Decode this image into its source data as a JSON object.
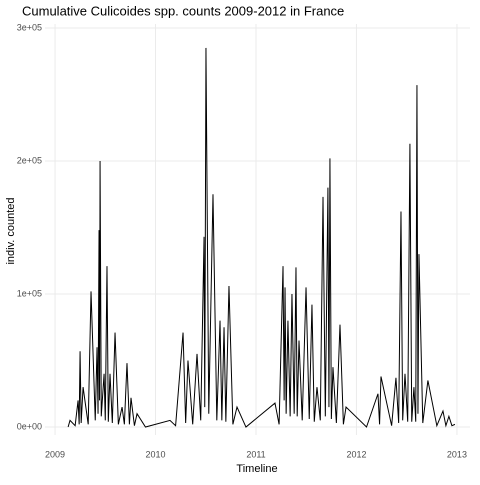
{
  "chart_data": {
    "type": "line",
    "title": "Cumulative Culicoides spp. counts 2009-2012 in France",
    "xlabel": "Timeline",
    "ylabel": "indiv. counted",
    "color": "#000000",
    "grid": true,
    "x": [
      2009.13,
      2009.149,
      2009.2,
      2009.229,
      2009.24,
      2009.249,
      2009.26,
      2009.279,
      2009.33,
      2009.358,
      2009.4,
      2009.418,
      2009.428,
      2009.438,
      2009.443,
      2009.448,
      2009.46,
      2009.488,
      2009.5,
      2009.517,
      2009.53,
      2009.547,
      2009.57,
      2009.597,
      2009.63,
      2009.667,
      2009.69,
      2009.716,
      2009.74,
      2009.756,
      2009.79,
      2009.816,
      2009.9,
      2010.144,
      2010.2,
      2010.274,
      2010.3,
      2010.323,
      2010.37,
      2010.413,
      2010.45,
      2010.483,
      2010.49,
      2010.502,
      2010.53,
      2010.572,
      2010.61,
      2010.642,
      2010.66,
      2010.682,
      2010.7,
      2010.731,
      2010.77,
      2010.811,
      2010.9,
      2011.189,
      2011.23,
      2011.269,
      2011.28,
      2011.289,
      2011.3,
      2011.318,
      2011.34,
      2011.358,
      2011.38,
      2011.398,
      2011.41,
      2011.428,
      2011.46,
      2011.498,
      2011.53,
      2011.557,
      2011.58,
      2011.607,
      2011.64,
      2011.667,
      2011.69,
      2011.716,
      2011.726,
      2011.736,
      2011.75,
      2011.766,
      2011.8,
      2011.836,
      2011.87,
      2011.896,
      2012.1,
      2012.214,
      2012.23,
      2012.244,
      2012.35,
      2012.393,
      2012.42,
      2012.443,
      2012.46,
      2012.483,
      2012.51,
      2012.532,
      2012.55,
      2012.572,
      2012.59,
      2012.602,
      2012.612,
      2012.622,
      2012.66,
      2012.711,
      2012.8,
      2012.861,
      2012.89,
      2012.92,
      2012.95,
      2012.98
    ],
    "values": [
      0,
      5000,
      1000,
      20000,
      2000,
      57000,
      3000,
      30000,
      2000,
      102000,
      5000,
      60000,
      10000,
      148000,
      20000,
      200000,
      8000,
      40000,
      5000,
      121000,
      4000,
      40000,
      3000,
      71000,
      2000,
      15000,
      2000,
      48000,
      2000,
      22000,
      1000,
      10000,
      0,
      5000,
      1000,
      71000,
      3000,
      50000,
      2000,
      55000,
      5000,
      143000,
      15000,
      285000,
      10000,
      175000,
      5000,
      80000,
      5000,
      75000,
      4000,
      106000,
      2000,
      15000,
      0,
      18000,
      2000,
      121000,
      20000,
      105000,
      10000,
      80000,
      8000,
      100000,
      10000,
      120000,
      8000,
      65000,
      5000,
      105000,
      6000,
      92000,
      4000,
      30000,
      5000,
      173000,
      8000,
      180000,
      15000,
      202000,
      6000,
      45000,
      3000,
      77000,
      2000,
      15000,
      0,
      25000,
      2000,
      38000,
      1000,
      37000,
      3000,
      162000,
      5000,
      40000,
      4000,
      213000,
      4000,
      30000,
      4000,
      257000,
      10000,
      130000,
      3000,
      35000,
      1000,
      12000,
      1000,
      8000,
      1000,
      2000
    ],
    "xlim": [
      2008.9,
      2013.13
    ],
    "xticks": [
      2009,
      2010,
      2011,
      2012,
      2013
    ],
    "ylim": [
      -6000,
      303000
    ],
    "yticks": [
      {
        "value": 0,
        "label": "0e+00"
      },
      {
        "value": 100000,
        "label": "1e+05"
      },
      {
        "value": 200000,
        "label": "2e+05"
      },
      {
        "value": 300000,
        "label": "3e+05"
      }
    ]
  }
}
